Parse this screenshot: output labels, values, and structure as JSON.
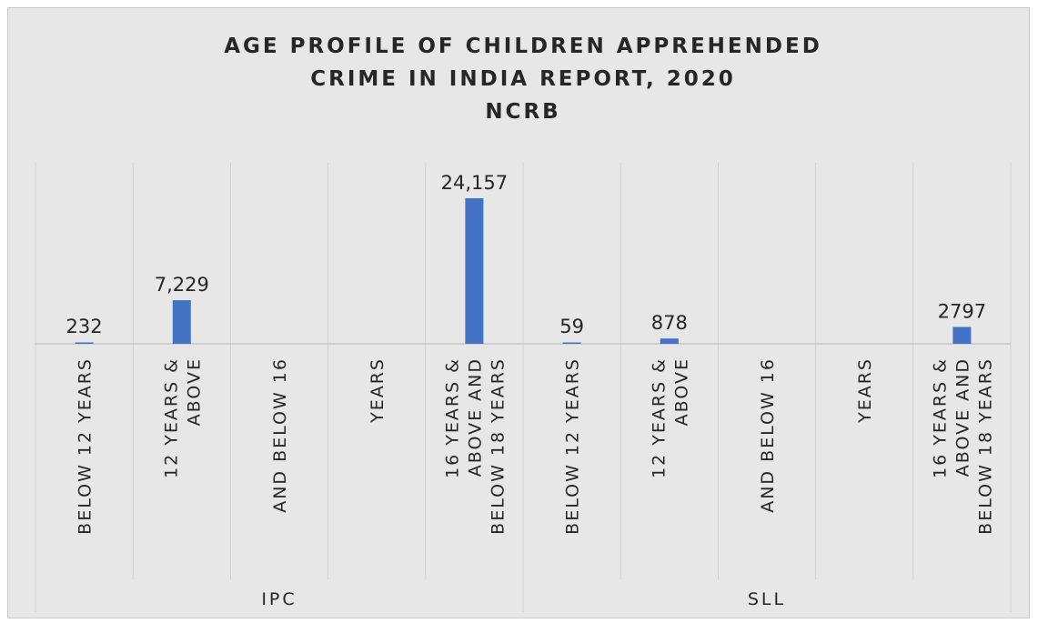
{
  "chart_data": {
    "type": "bar",
    "title_lines": [
      "AGE PROFILE OF CHILDREN APPREHENDED",
      "CRIME IN INDIA REPORT, 2020",
      "NCRB"
    ],
    "groups": [
      {
        "name": "IPC",
        "categories": [
          [
            "BELOW 12 YEARS"
          ],
          [
            "12 YEARS &",
            "ABOVE"
          ],
          [
            "AND BELOW 16"
          ],
          [
            "YEARS"
          ],
          [
            "16 YEARS &",
            "ABOVE AND",
            "BELOW 18 YEARS"
          ]
        ],
        "values": [
          232,
          7229,
          null,
          null,
          24157
        ],
        "labels": [
          "232",
          "7,229",
          "",
          "",
          "24,157"
        ]
      },
      {
        "name": "SLL",
        "categories": [
          [
            "BELOW 12 YEARS"
          ],
          [
            "12 YEARS &",
            "ABOVE"
          ],
          [
            "AND BELOW 16"
          ],
          [
            "YEARS"
          ],
          [
            "16 YEARS &",
            "ABOVE AND",
            "BELOW 18 YEARS"
          ]
        ],
        "values": [
          59,
          878,
          null,
          null,
          2797
        ],
        "labels": [
          "59",
          "878",
          "",
          "",
          "2797"
        ]
      }
    ],
    "bar_color": "#4472c4",
    "grid": true,
    "legend": "none"
  }
}
